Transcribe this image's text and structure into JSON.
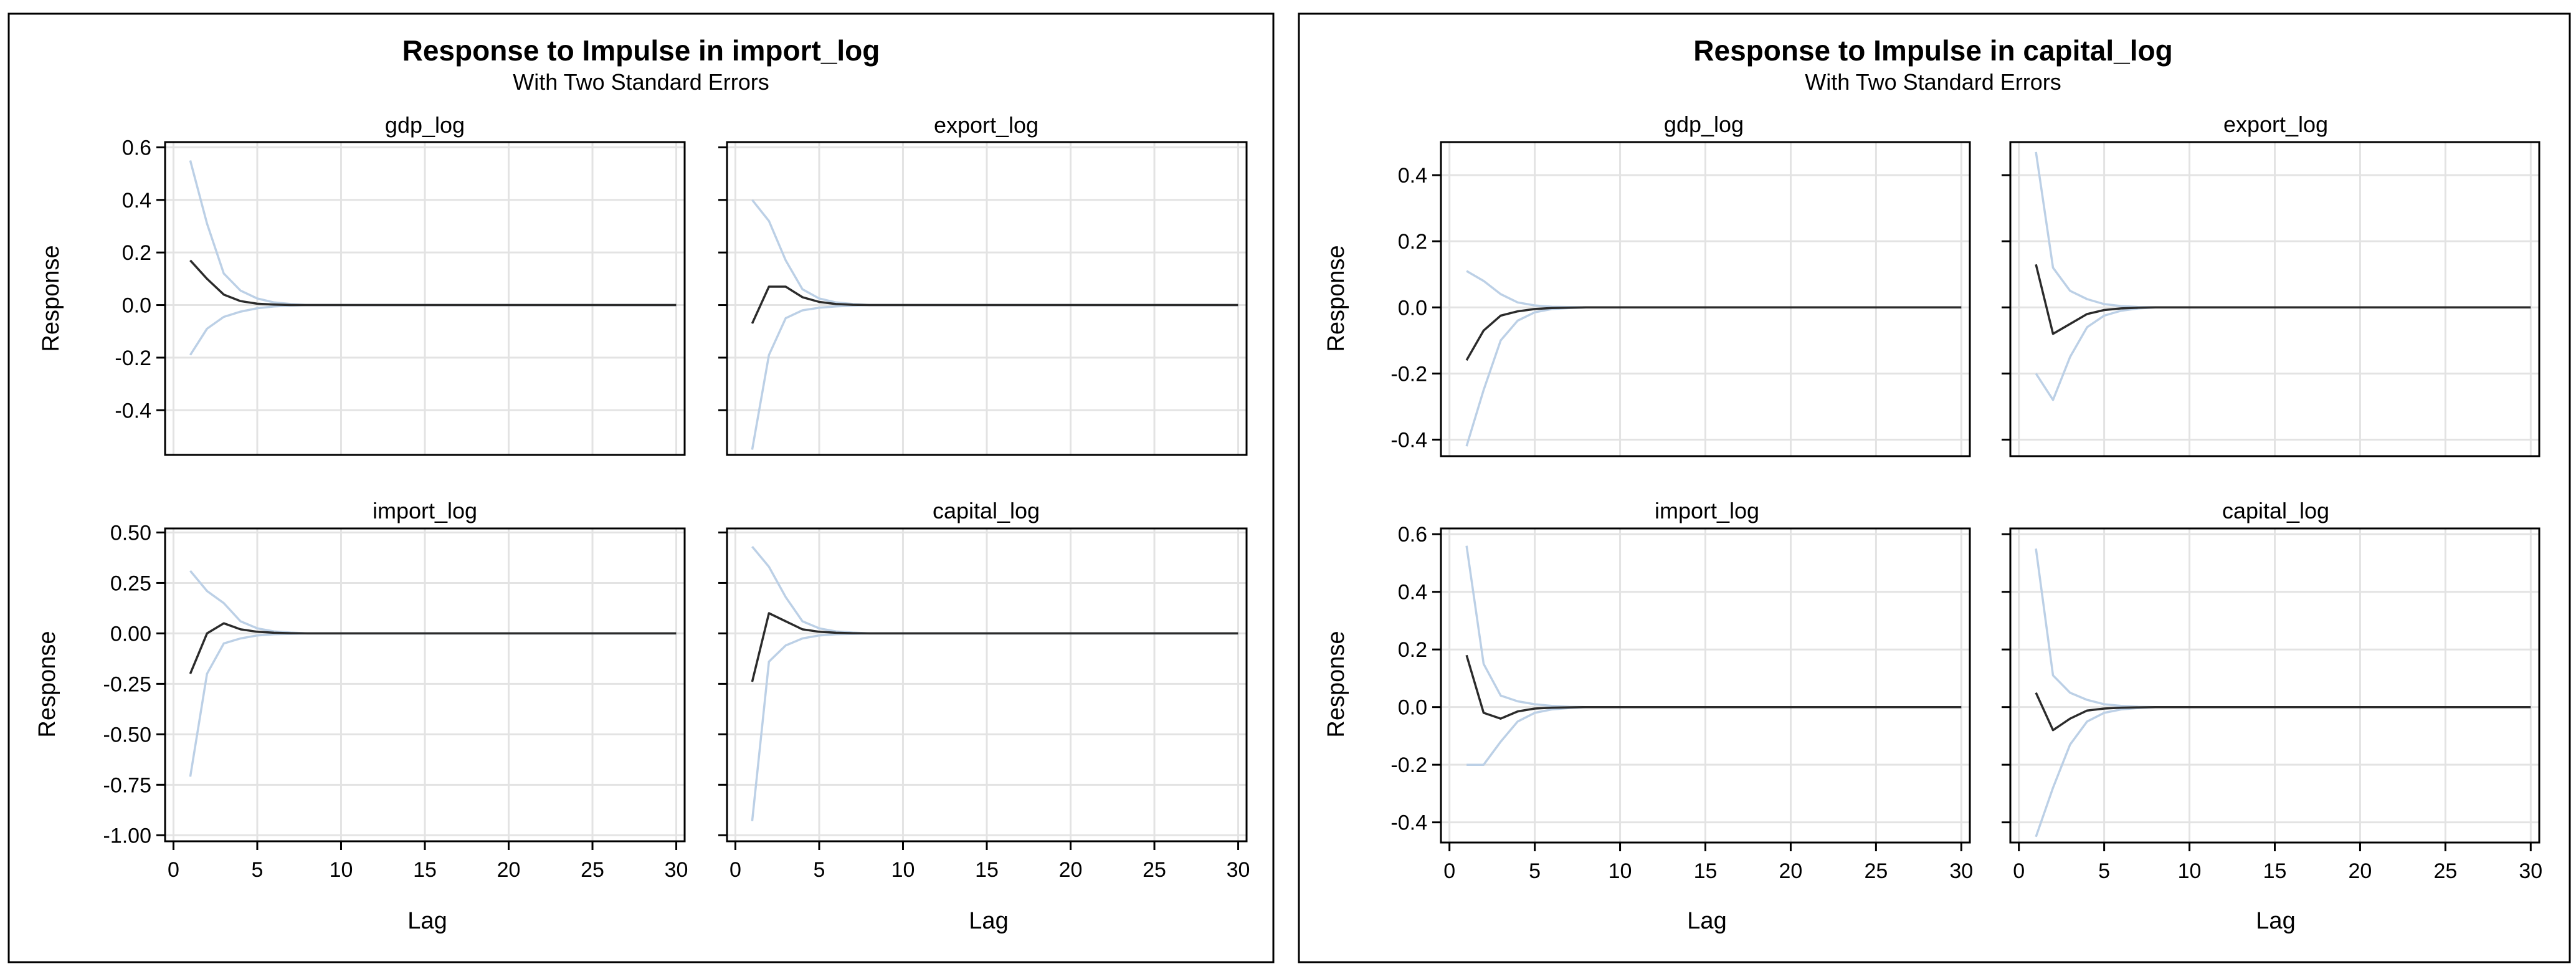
{
  "colors": {
    "response_line": "#2b2b2b",
    "error_band": "#bcd0e6",
    "grid": "#e3e3e3",
    "frame": "#000000",
    "background": "#ffffff"
  },
  "chart_data": [
    {
      "type": "line",
      "title": "Response to Impulse in import_log",
      "subtitle": "With Two Standard Errors",
      "xlabel": "Lag",
      "ylabel": "Response",
      "panels": [
        {
          "title": "gdp_log",
          "ylim": [
            -0.57,
            0.62
          ],
          "yticks": [
            -0.4,
            -0.2,
            0.0,
            0.2,
            0.4,
            0.6
          ],
          "ytick_labels": [
            "-0.4",
            "-0.2",
            "0.0",
            "0.2",
            "0.4",
            "0.6"
          ],
          "response": [
            0.17,
            0.1,
            0.04,
            0.015,
            0.005,
            0.002,
            0,
            0
          ],
          "upper": [
            0.55,
            0.31,
            0.12,
            0.055,
            0.025,
            0.01,
            0.004,
            0
          ],
          "lower": [
            -0.19,
            -0.09,
            -0.045,
            -0.025,
            -0.012,
            -0.005,
            -0.002,
            0
          ]
        },
        {
          "title": "export_log",
          "ylim": [
            -0.57,
            0.62
          ],
          "yticks": [
            -0.4,
            -0.2,
            0.0,
            0.2,
            0.4,
            0.6
          ],
          "ytick_labels": [
            "-0.4",
            "-0.2",
            "0.0",
            "0.2",
            "0.4",
            "0.6"
          ],
          "response": [
            -0.07,
            0.07,
            0.07,
            0.03,
            0.012,
            0.004,
            0.001,
            0
          ],
          "upper": [
            0.4,
            0.32,
            0.17,
            0.06,
            0.025,
            0.01,
            0.004,
            0
          ],
          "lower": [
            -0.55,
            -0.19,
            -0.05,
            -0.02,
            -0.01,
            -0.005,
            -0.002,
            0
          ]
        },
        {
          "title": "import_log",
          "ylim": [
            -1.03,
            0.52
          ],
          "yticks": [
            -1.0,
            -0.75,
            -0.5,
            -0.25,
            0.0,
            0.25,
            0.5
          ],
          "ytick_labels": [
            "-1.00",
            "-0.75",
            "-0.50",
            "-0.25",
            "0.00",
            "0.25",
            "0.50"
          ],
          "response": [
            -0.2,
            0.0,
            0.05,
            0.02,
            0.008,
            0.003,
            0.001,
            0
          ],
          "upper": [
            0.31,
            0.21,
            0.15,
            0.06,
            0.025,
            0.01,
            0.004,
            0
          ],
          "lower": [
            -0.71,
            -0.2,
            -0.05,
            -0.025,
            -0.01,
            -0.004,
            -0.002,
            0
          ]
        },
        {
          "title": "capital_log",
          "ylim": [
            -1.03,
            0.52
          ],
          "yticks": [
            -1.0,
            -0.75,
            -0.5,
            -0.25,
            0.0,
            0.25,
            0.5
          ],
          "ytick_labels": [
            "",
            "",
            "",
            "",
            "",
            "",
            ""
          ],
          "response": [
            -0.24,
            0.1,
            0.06,
            0.02,
            0.008,
            0.003,
            0.001,
            0
          ],
          "upper": [
            0.43,
            0.33,
            0.18,
            0.06,
            0.025,
            0.01,
            0.004,
            0
          ],
          "lower": [
            -0.93,
            -0.14,
            -0.06,
            -0.025,
            -0.01,
            -0.004,
            -0.002,
            0
          ]
        }
      ],
      "x": {
        "lags": [
          1,
          2,
          3,
          4,
          5,
          6,
          7,
          8
        ],
        "extend_to": 30,
        "xlim": [
          -0.5,
          30.5
        ],
        "xticks": [
          0,
          5,
          10,
          15,
          20,
          25,
          30
        ],
        "xtick_labels": [
          "0",
          "5",
          "10",
          "15",
          "20",
          "25",
          "30"
        ]
      },
      "grid": true
    },
    {
      "type": "line",
      "title": "Response to Impulse in capital_log",
      "subtitle": "With Two Standard Errors",
      "xlabel": "Lag",
      "ylabel": "Response",
      "panels": [
        {
          "title": "gdp_log",
          "ylim": [
            -0.45,
            0.5
          ],
          "yticks": [
            -0.4,
            -0.2,
            0.0,
            0.2,
            0.4
          ],
          "ytick_labels": [
            "-0.4",
            "-0.2",
            "0.0",
            "0.2",
            "0.4"
          ],
          "response": [
            -0.16,
            -0.07,
            -0.025,
            -0.012,
            -0.005,
            -0.002,
            -0.001,
            0
          ],
          "upper": [
            0.11,
            0.08,
            0.04,
            0.015,
            0.006,
            0.002,
            0.001,
            0
          ],
          "lower": [
            -0.42,
            -0.25,
            -0.1,
            -0.04,
            -0.015,
            -0.005,
            -0.002,
            0
          ]
        },
        {
          "title": "export_log",
          "ylim": [
            -0.45,
            0.5
          ],
          "yticks": [
            -0.4,
            -0.2,
            0.0,
            0.2,
            0.4
          ],
          "ytick_labels": [
            "",
            "",
            "",
            "",
            ""
          ],
          "response": [
            0.13,
            -0.08,
            -0.05,
            -0.02,
            -0.008,
            -0.003,
            -0.001,
            0
          ],
          "upper": [
            0.47,
            0.12,
            0.05,
            0.025,
            0.01,
            0.004,
            0.001,
            0
          ],
          "lower": [
            -0.2,
            -0.28,
            -0.15,
            -0.06,
            -0.025,
            -0.01,
            -0.003,
            0
          ]
        },
        {
          "title": "import_log",
          "ylim": [
            -0.47,
            0.62
          ],
          "yticks": [
            -0.4,
            -0.2,
            0.0,
            0.2,
            0.4,
            0.6
          ],
          "ytick_labels": [
            "-0.4",
            "-0.2",
            "0.0",
            "0.2",
            "0.4",
            "0.6"
          ],
          "response": [
            0.18,
            -0.02,
            -0.04,
            -0.015,
            -0.005,
            -0.002,
            -0.001,
            0
          ],
          "upper": [
            0.56,
            0.15,
            0.04,
            0.02,
            0.01,
            0.004,
            0.001,
            0
          ],
          "lower": [
            -0.2,
            -0.2,
            -0.12,
            -0.05,
            -0.02,
            -0.008,
            -0.003,
            0
          ]
        },
        {
          "title": "capital_log",
          "ylim": [
            -0.47,
            0.62
          ],
          "yticks": [
            -0.4,
            -0.2,
            0.0,
            0.2,
            0.4,
            0.6
          ],
          "ytick_labels": [
            "",
            "",
            "",
            "",
            "",
            ""
          ],
          "response": [
            0.05,
            -0.08,
            -0.04,
            -0.012,
            -0.005,
            -0.002,
            -0.001,
            0
          ],
          "upper": [
            0.55,
            0.11,
            0.05,
            0.025,
            0.01,
            0.004,
            0.001,
            0
          ],
          "lower": [
            -0.45,
            -0.28,
            -0.13,
            -0.05,
            -0.02,
            -0.008,
            -0.003,
            0
          ]
        }
      ],
      "x": {
        "lags": [
          1,
          2,
          3,
          4,
          5,
          6,
          7,
          8
        ],
        "extend_to": 30,
        "xlim": [
          -0.5,
          30.5
        ],
        "xticks": [
          0,
          5,
          10,
          15,
          20,
          25,
          30
        ],
        "xtick_labels": [
          "0",
          "5",
          "10",
          "15",
          "20",
          "25",
          "30"
        ]
      },
      "grid": true
    }
  ]
}
